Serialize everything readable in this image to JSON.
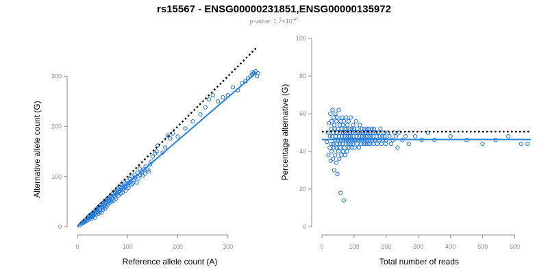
{
  "title": "rs15567 - ENSG00000231851,ENSG00000135972",
  "subtitle": {
    "prefix": "p-value: 1.7×10",
    "exponent": "-47"
  },
  "colors": {
    "points": "#1e73d2",
    "fit_line": "#2383e2",
    "reference_line": "#000000",
    "axis": "#8c8c8c"
  },
  "chart_data": [
    {
      "type": "scatter",
      "title": "",
      "xlabel": "Reference allele count (A)",
      "ylabel": "Alternative allele count (G)",
      "xlim": [
        0,
        370
      ],
      "ylim": [
        0,
        310
      ],
      "xticks": [
        0,
        100,
        200,
        300
      ],
      "yticks": [
        0,
        100,
        200,
        300
      ],
      "fit_line": {
        "x": [
          0,
          358
        ],
        "y": [
          0,
          308
        ]
      },
      "reference_line": {
        "style": "dotted",
        "x": [
          0,
          358
        ],
        "y": [
          0,
          358
        ]
      },
      "points": [
        [
          5,
          3
        ],
        [
          8,
          6
        ],
        [
          10,
          9
        ],
        [
          12,
          8
        ],
        [
          14,
          12
        ],
        [
          15,
          10
        ],
        [
          16,
          14
        ],
        [
          18,
          12
        ],
        [
          20,
          18
        ],
        [
          20,
          15
        ],
        [
          22,
          20
        ],
        [
          22,
          14
        ],
        [
          24,
          22
        ],
        [
          25,
          18
        ],
        [
          26,
          24
        ],
        [
          27,
          20
        ],
        [
          28,
          16
        ],
        [
          28,
          26
        ],
        [
          30,
          25
        ],
        [
          30,
          20
        ],
        [
          32,
          28
        ],
        [
          32,
          22
        ],
        [
          34,
          30
        ],
        [
          34,
          26
        ],
        [
          35,
          18
        ],
        [
          36,
          32
        ],
        [
          36,
          24
        ],
        [
          38,
          34
        ],
        [
          38,
          28
        ],
        [
          40,
          36
        ],
        [
          40,
          30
        ],
        [
          41,
          38
        ],
        [
          42,
          26
        ],
        [
          43,
          40
        ],
        [
          44,
          34
        ],
        [
          45,
          30
        ],
        [
          45,
          42
        ],
        [
          46,
          36
        ],
        [
          47,
          44
        ],
        [
          48,
          28
        ],
        [
          48,
          40
        ],
        [
          50,
          46
        ],
        [
          50,
          38
        ],
        [
          51,
          34
        ],
        [
          52,
          48
        ],
        [
          53,
          42
        ],
        [
          54,
          50
        ],
        [
          55,
          44
        ],
        [
          55,
          36
        ],
        [
          56,
          52
        ],
        [
          57,
          46
        ],
        [
          58,
          40
        ],
        [
          58,
          54
        ],
        [
          60,
          50
        ],
        [
          60,
          56
        ],
        [
          61,
          44
        ],
        [
          62,
          58
        ],
        [
          63,
          52
        ],
        [
          64,
          48
        ],
        [
          65,
          60
        ],
        [
          66,
          54
        ],
        [
          67,
          62
        ],
        [
          68,
          50
        ],
        [
          68,
          58
        ],
        [
          70,
          66
        ],
        [
          70,
          56
        ],
        [
          72,
          62
        ],
        [
          72,
          52
        ],
        [
          74,
          70
        ],
        [
          75,
          60
        ],
        [
          76,
          68
        ],
        [
          77,
          56
        ],
        [
          78,
          72
        ],
        [
          80,
          66
        ],
        [
          80,
          76
        ],
        [
          82,
          70
        ],
        [
          82,
          62
        ],
        [
          84,
          80
        ],
        [
          85,
          72
        ],
        [
          86,
          66
        ],
        [
          88,
          78
        ],
        [
          88,
          84
        ],
        [
          90,
          74
        ],
        [
          90,
          68
        ],
        [
          92,
          82
        ],
        [
          93,
          76
        ],
        [
          94,
          88
        ],
        [
          95,
          80
        ],
        [
          96,
          72
        ],
        [
          98,
          86
        ],
        [
          100,
          92
        ],
        [
          100,
          82
        ],
        [
          102,
          78
        ],
        [
          103,
          88
        ],
        [
          105,
          96
        ],
        [
          106,
          90
        ],
        [
          108,
          100
        ],
        [
          108,
          84
        ],
        [
          110,
          86
        ],
        [
          112,
          94
        ],
        [
          114,
          104
        ],
        [
          115,
          98
        ],
        [
          118,
          88
        ],
        [
          120,
          108
        ],
        [
          122,
          96
        ],
        [
          124,
          116
        ],
        [
          125,
          104
        ],
        [
          128,
          108
        ],
        [
          130,
          102
        ],
        [
          132,
          114
        ],
        [
          135,
          106
        ],
        [
          136,
          120
        ],
        [
          140,
          114
        ],
        [
          142,
          110
        ],
        [
          145,
          124
        ],
        [
          148,
          130
        ],
        [
          150,
          140
        ],
        [
          155,
          146
        ],
        [
          158,
          150
        ],
        [
          160,
          162
        ],
        [
          170,
          148
        ],
        [
          175,
          158
        ],
        [
          180,
          182
        ],
        [
          185,
          176
        ],
        [
          190,
          186
        ],
        [
          200,
          180
        ],
        [
          215,
          196
        ],
        [
          230,
          210
        ],
        [
          245,
          224
        ],
        [
          255,
          238
        ],
        [
          262,
          254
        ],
        [
          270,
          262
        ],
        [
          280,
          250
        ],
        [
          290,
          258
        ],
        [
          300,
          262
        ],
        [
          310,
          278
        ],
        [
          320,
          272
        ],
        [
          328,
          286
        ],
        [
          335,
          290
        ],
        [
          340,
          296
        ],
        [
          345,
          300
        ],
        [
          348,
          304
        ],
        [
          350,
          308
        ],
        [
          352,
          306
        ],
        [
          355,
          310
        ],
        [
          358,
          300
        ],
        [
          360,
          306
        ]
      ]
    },
    {
      "type": "scatter",
      "title": "",
      "xlabel": "Total number of reads",
      "ylabel": "Percentage alternative (G)",
      "xlim": [
        0,
        650
      ],
      "ylim": [
        0,
        100
      ],
      "xticks": [
        0,
        100,
        200,
        300,
        400,
        500,
        600
      ],
      "yticks": [
        0,
        20,
        40,
        60,
        80,
        100
      ],
      "fit_line": {
        "x": [
          0,
          650
        ],
        "y": [
          46.3,
          46.3
        ]
      },
      "reference_line": {
        "style": "dotted",
        "x": [
          0,
          650
        ],
        "y": [
          50.5,
          50.5
        ]
      },
      "points": [
        [
          15,
          45
        ],
        [
          18,
          50
        ],
        [
          20,
          38
        ],
        [
          22,
          55
        ],
        [
          24,
          42
        ],
        [
          25,
          48
        ],
        [
          26,
          60
        ],
        [
          27,
          35
        ],
        [
          28,
          52
        ],
        [
          29,
          44
        ],
        [
          30,
          56
        ],
        [
          30,
          40
        ],
        [
          32,
          48
        ],
        [
          33,
          62
        ],
        [
          34,
          36
        ],
        [
          35,
          50
        ],
        [
          35,
          44
        ],
        [
          36,
          58
        ],
        [
          37,
          42
        ],
        [
          38,
          30
        ],
        [
          38,
          54
        ],
        [
          40,
          46
        ],
        [
          40,
          52
        ],
        [
          41,
          38
        ],
        [
          42,
          60
        ],
        [
          43,
          48
        ],
        [
          44,
          42
        ],
        [
          45,
          56
        ],
        [
          45,
          34
        ],
        [
          46,
          50
        ],
        [
          47,
          44
        ],
        [
          48,
          28
        ],
        [
          48,
          58
        ],
        [
          50,
          46
        ],
        [
          50,
          52
        ],
        [
          51,
          40
        ],
        [
          52,
          62
        ],
        [
          53,
          48
        ],
        [
          54,
          36
        ],
        [
          55,
          54
        ],
        [
          55,
          44
        ],
        [
          56,
          50
        ],
        [
          57,
          42
        ],
        [
          58,
          18
        ],
        [
          58,
          56
        ],
        [
          60,
          46
        ],
        [
          60,
          38
        ],
        [
          61,
          52
        ],
        [
          62,
          48
        ],
        [
          63,
          58
        ],
        [
          64,
          44
        ],
        [
          65,
          40
        ],
        [
          65,
          54
        ],
        [
          66,
          50
        ],
        [
          67,
          46
        ],
        [
          68,
          14
        ],
        [
          68,
          56
        ],
        [
          70,
          48
        ],
        [
          70,
          42
        ],
        [
          71,
          52
        ],
        [
          72,
          38
        ],
        [
          73,
          50
        ],
        [
          74,
          46
        ],
        [
          75,
          58
        ],
        [
          75,
          44
        ],
        [
          76,
          52
        ],
        [
          77,
          48
        ],
        [
          78,
          40
        ],
        [
          79,
          54
        ],
        [
          80,
          46
        ],
        [
          80,
          50
        ],
        [
          82,
          44
        ],
        [
          83,
          56
        ],
        [
          84,
          48
        ],
        [
          85,
          42
        ],
        [
          86,
          52
        ],
        [
          87,
          46
        ],
        [
          88,
          50
        ],
        [
          89,
          44
        ],
        [
          90,
          58
        ],
        [
          90,
          48
        ],
        [
          92,
          42
        ],
        [
          93,
          52
        ],
        [
          94,
          46
        ],
        [
          95,
          50
        ],
        [
          96,
          44
        ],
        [
          97,
          54
        ],
        [
          98,
          48
        ],
        [
          100,
          46
        ],
        [
          100,
          52
        ],
        [
          102,
          42
        ],
        [
          104,
          50
        ],
        [
          105,
          46
        ],
        [
          106,
          56
        ],
        [
          108,
          48
        ],
        [
          110,
          44
        ],
        [
          110,
          52
        ],
        [
          112,
          46
        ],
        [
          114,
          50
        ],
        [
          115,
          42
        ],
        [
          116,
          48
        ],
        [
          118,
          54
        ],
        [
          120,
          46
        ],
        [
          120,
          50
        ],
        [
          122,
          44
        ],
        [
          124,
          48
        ],
        [
          125,
          52
        ],
        [
          126,
          46
        ],
        [
          128,
          50
        ],
        [
          130,
          44
        ],
        [
          130,
          48
        ],
        [
          132,
          52
        ],
        [
          134,
          46
        ],
        [
          135,
          50
        ],
        [
          136,
          44
        ],
        [
          138,
          48
        ],
        [
          140,
          52
        ],
        [
          140,
          46
        ],
        [
          142,
          50
        ],
        [
          144,
          44
        ],
        [
          145,
          48
        ],
        [
          146,
          52
        ],
        [
          148,
          46
        ],
        [
          150,
          50
        ],
        [
          150,
          44
        ],
        [
          152,
          48
        ],
        [
          155,
          52
        ],
        [
          156,
          46
        ],
        [
          158,
          50
        ],
        [
          160,
          44
        ],
        [
          160,
          48
        ],
        [
          162,
          52
        ],
        [
          165,
          46
        ],
        [
          168,
          50
        ],
        [
          170,
          48
        ],
        [
          172,
          44
        ],
        [
          175,
          50
        ],
        [
          178,
          46
        ],
        [
          180,
          48
        ],
        [
          182,
          52
        ],
        [
          185,
          44
        ],
        [
          188,
          48
        ],
        [
          190,
          46
        ],
        [
          192,
          50
        ],
        [
          195,
          48
        ],
        [
          198,
          44
        ],
        [
          200,
          46
        ],
        [
          205,
          50
        ],
        [
          210,
          48
        ],
        [
          215,
          44
        ],
        [
          220,
          46
        ],
        [
          225,
          50
        ],
        [
          230,
          48
        ],
        [
          235,
          42
        ],
        [
          240,
          50
        ],
        [
          250,
          46
        ],
        [
          260,
          48
        ],
        [
          270,
          44
        ],
        [
          290,
          48
        ],
        [
          310,
          46
        ],
        [
          330,
          50
        ],
        [
          350,
          46
        ],
        [
          400,
          48
        ],
        [
          450,
          46
        ],
        [
          500,
          44
        ],
        [
          540,
          46
        ],
        [
          580,
          48
        ],
        [
          620,
          44
        ],
        [
          640,
          44
        ]
      ]
    }
  ]
}
